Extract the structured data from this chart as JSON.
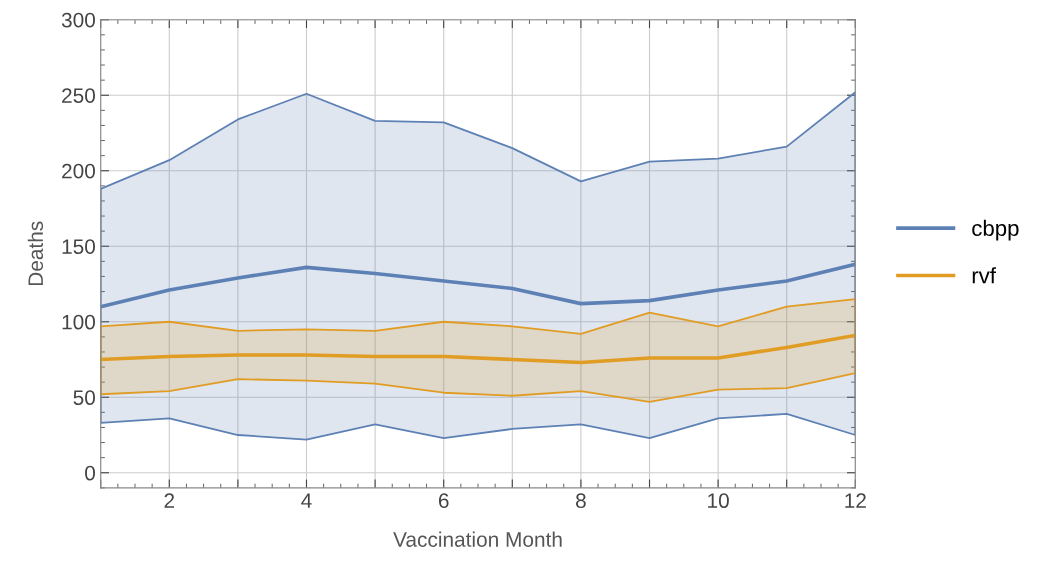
{
  "chart_data": {
    "type": "line",
    "xlabel": "Vaccination Month",
    "ylabel": "Deaths",
    "x": [
      1,
      2,
      3,
      4,
      5,
      6,
      7,
      8,
      9,
      10,
      11,
      12
    ],
    "series": [
      {
        "name": "cbpp",
        "color": "#5e81b5",
        "values": [
          110,
          121,
          129,
          136,
          132,
          127,
          122,
          112,
          114,
          121,
          127,
          138
        ],
        "lower": [
          33,
          36,
          25,
          22,
          32,
          23,
          29,
          32,
          23,
          36,
          39,
          25
        ],
        "upper": [
          188,
          207,
          234,
          251,
          233,
          232,
          215,
          193,
          206,
          208,
          216,
          252
        ]
      },
      {
        "name": "rvf",
        "color": "#e19c24",
        "values": [
          75,
          77,
          78,
          78,
          77,
          77,
          75,
          73,
          76,
          76,
          83,
          91
        ],
        "lower": [
          52,
          54,
          62,
          61,
          59,
          53,
          51,
          54,
          47,
          55,
          56,
          66
        ],
        "upper": [
          97,
          100,
          94,
          95,
          94,
          100,
          97,
          92,
          106,
          97,
          110,
          115
        ]
      }
    ],
    "xlim": [
      1,
      12
    ],
    "ylim": [
      -10,
      300
    ],
    "xticks": [
      {
        "value": 1,
        "label": null
      },
      2,
      {
        "value": 3,
        "label": null
      },
      4,
      {
        "value": 5,
        "label": null
      },
      6,
      {
        "value": 7,
        "label": null
      },
      8,
      {
        "value": 9,
        "label": null
      },
      10,
      {
        "value": 11,
        "label": null
      },
      12
    ],
    "yticks": [
      0,
      50,
      100,
      150,
      200,
      250,
      300
    ],
    "grid": true,
    "legend": "right",
    "marker": "none",
    "line_style": "solid"
  }
}
